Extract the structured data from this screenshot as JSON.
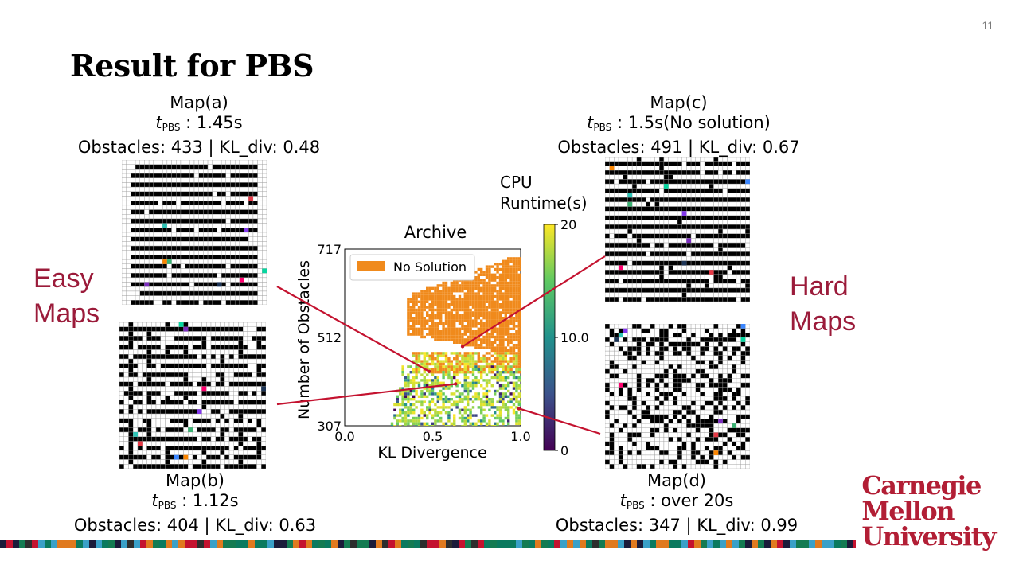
{
  "slide": {
    "number": "11",
    "title": "Result for PBS",
    "easy_label": [
      "Easy",
      "Maps"
    ],
    "hard_label": [
      "Hard",
      "Maps"
    ]
  },
  "maps": {
    "a": {
      "name": "Map(a)",
      "t_symbol": "t",
      "t_sub": "PBS",
      "runtime": " : 1.45s",
      "stats": "Obstacles: 433 | KL_div: 0.48",
      "pattern": "rows"
    },
    "b": {
      "name": "Map(b)",
      "t_symbol": "t",
      "t_sub": "PBS",
      "runtime": " : 1.12s",
      "stats": "Obstacles: 404 | KL_div: 0.63",
      "pattern": "rows-columns"
    },
    "c": {
      "name": "Map(c)",
      "t_symbol": "t",
      "t_sub": "PBS",
      "runtime": " : 1.5s(No solution)",
      "stats": "Obstacles: 491 | KL_div: 0.67",
      "pattern": "rows-dense"
    },
    "d": {
      "name": "Map(d)",
      "t_symbol": "t",
      "t_sub": "PBS",
      "runtime": " : over 20s",
      "stats": "Obstacles: 347 | KL_div: 0.99",
      "pattern": "random"
    }
  },
  "chart_data": {
    "type": "heatmap",
    "title": "Archive",
    "xlabel": "KL Divergence",
    "ylabel": "Number of Obstacles",
    "xlim": [
      0.0,
      1.0
    ],
    "ylim": [
      307,
      717
    ],
    "x_ticks": [
      "0.0",
      "0.5",
      "1.0"
    ],
    "y_ticks": [
      "307",
      "512",
      "717"
    ],
    "legend": {
      "label": "No Solution",
      "color": "#f08a1c",
      "placement": "top-left"
    },
    "colorbar": {
      "title": [
        "CPU",
        "Runtime(s)"
      ],
      "min": 0,
      "max": 20,
      "ticks": [
        "0",
        "10.0",
        "20"
      ],
      "colormap": "viridis"
    },
    "points": [
      {
        "label": "Map(a)",
        "kl": 0.48,
        "obstacles": 433
      },
      {
        "label": "Map(b)",
        "kl": 0.63,
        "obstacles": 404
      },
      {
        "label": "Map(c)",
        "kl": 0.67,
        "obstacles": 491
      },
      {
        "label": "Map(d)",
        "kl": 0.99,
        "obstacles": 347
      }
    ],
    "regions": [
      {
        "label": "no-solution",
        "kl_from": 0.35,
        "kl_to": 1.0,
        "obstacles_from": 470,
        "obstacles_to": 710
      },
      {
        "label": "solved-sparse",
        "kl_from": 0.25,
        "kl_to": 1.0,
        "obstacles_from": 307,
        "obstacles_to": 480
      }
    ]
  },
  "logo": {
    "lines": [
      "Carnegie",
      "Mellon",
      "University"
    ]
  },
  "colors": {
    "accent": "#9b1b3a",
    "connector": "#c4122f",
    "logo": "#b21e35",
    "no_solution": "#f08a1c"
  }
}
